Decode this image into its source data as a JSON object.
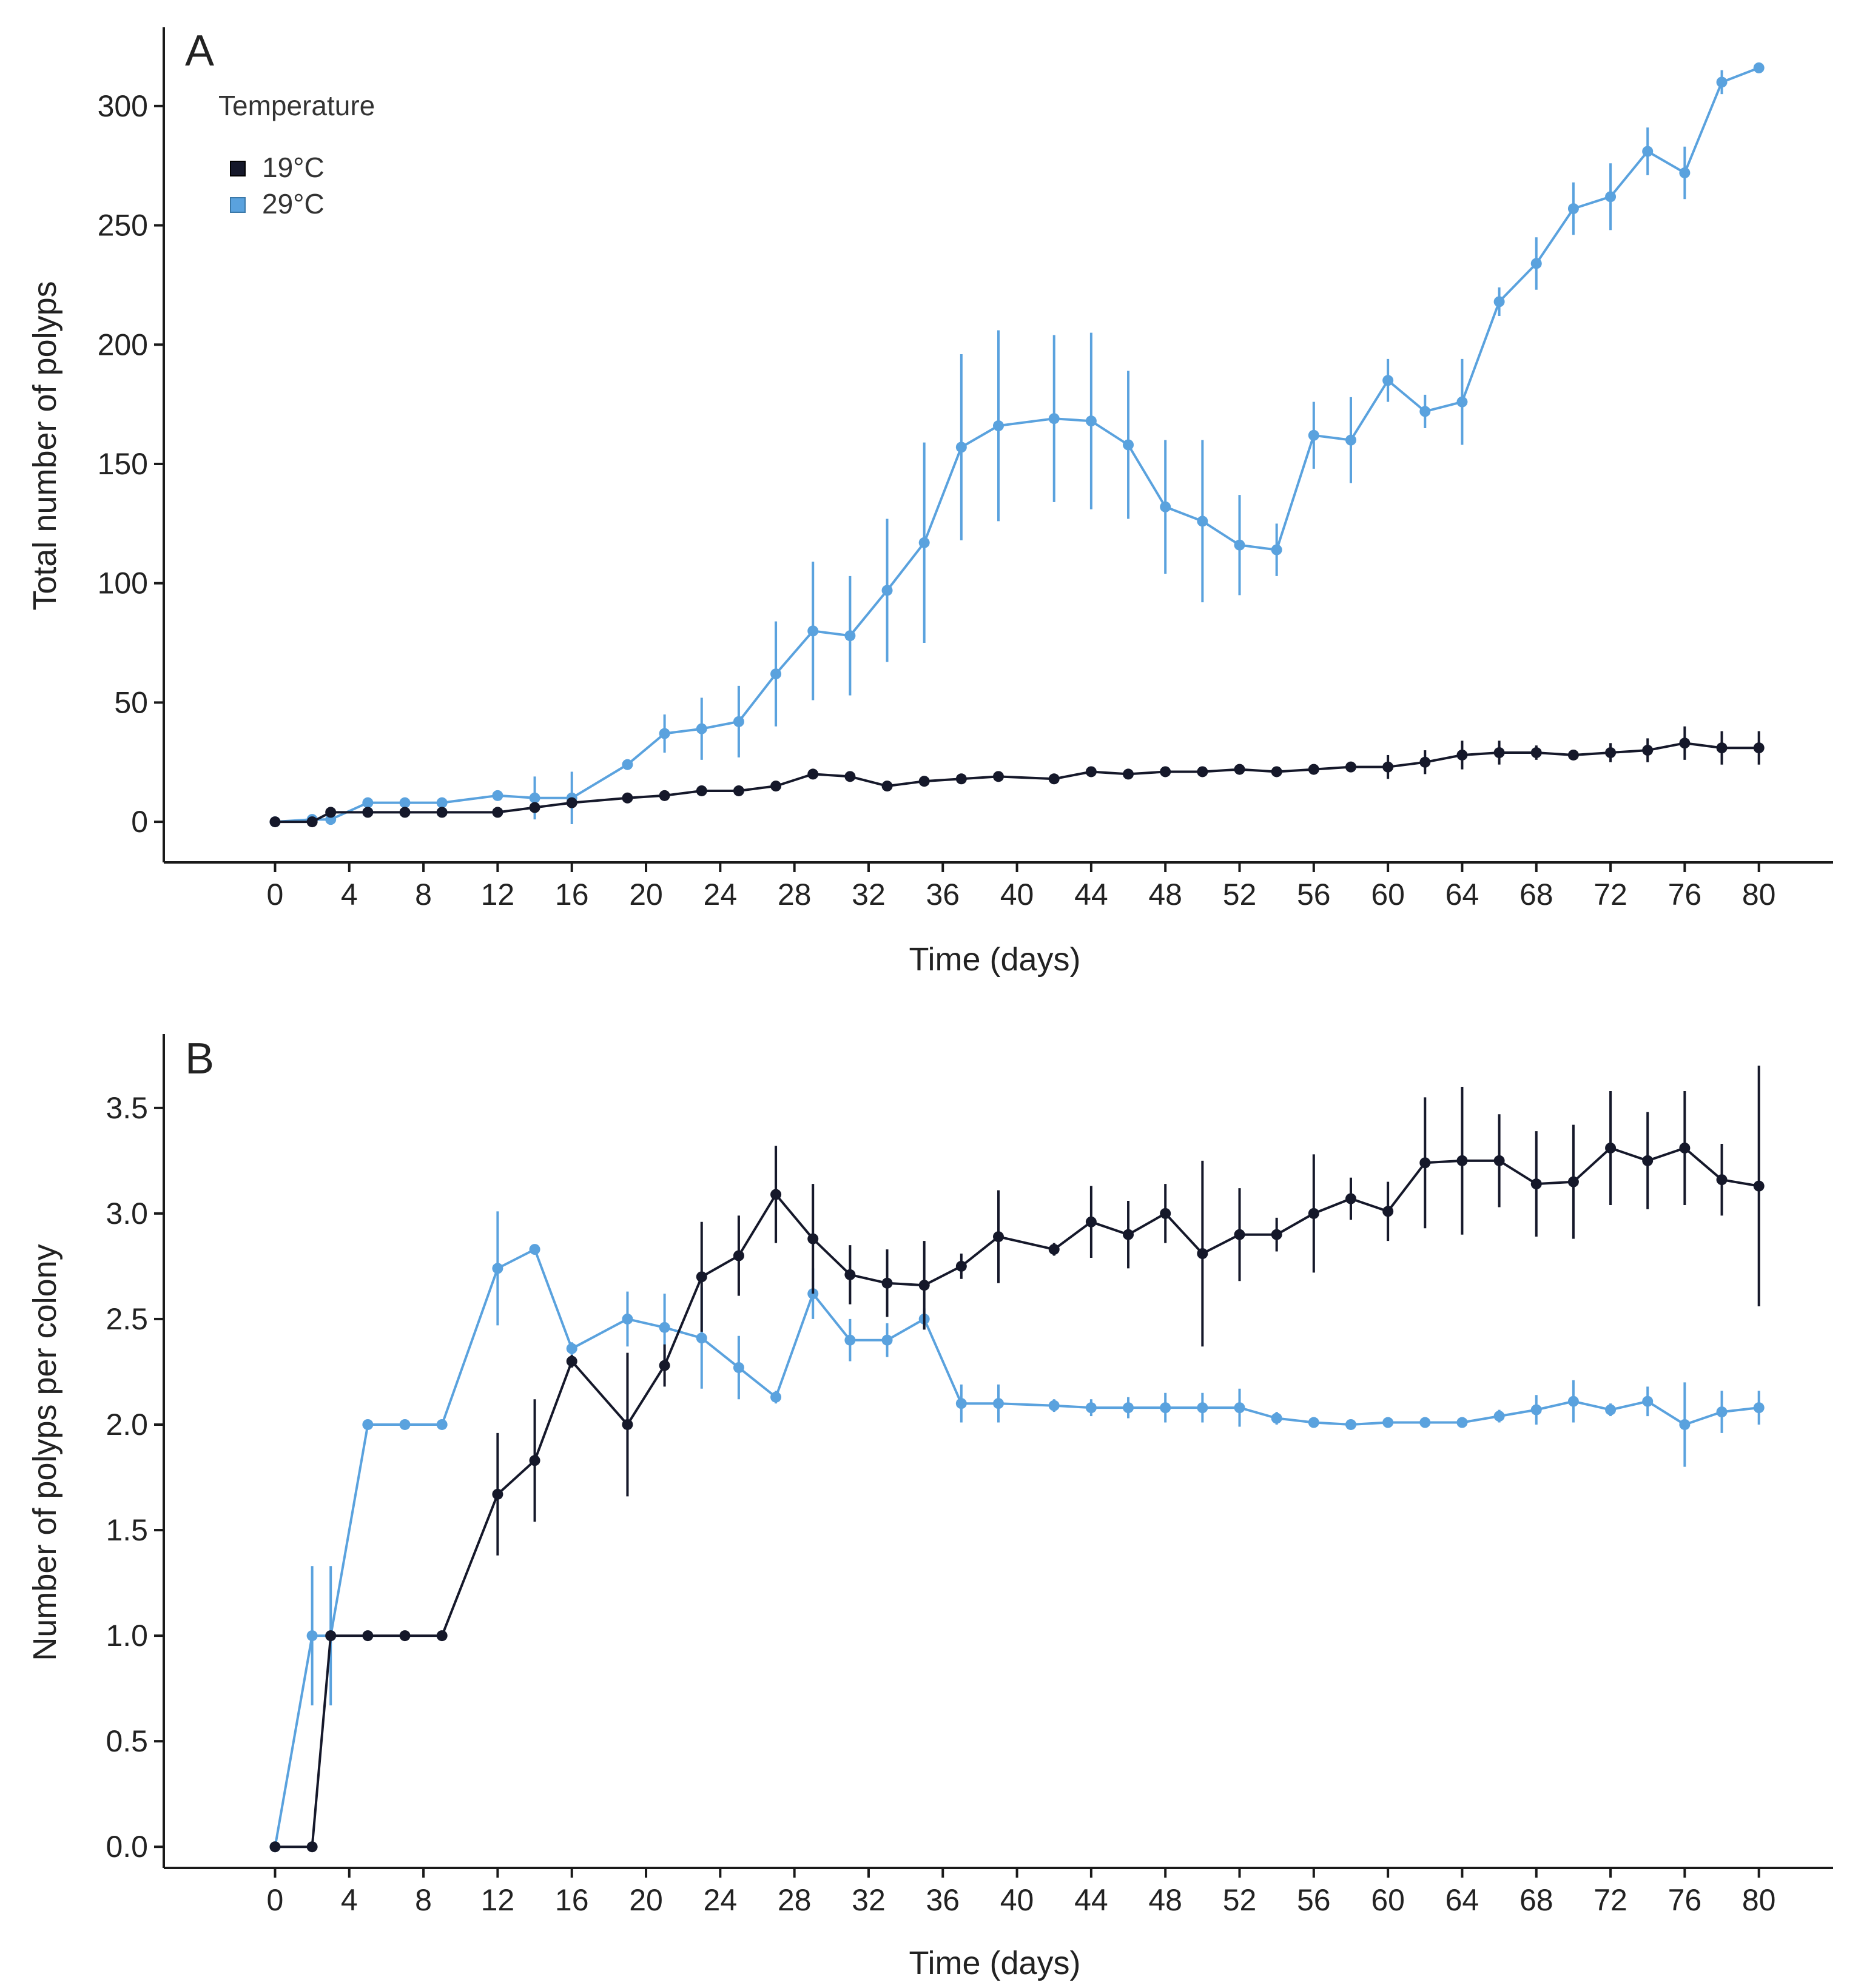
{
  "legend": {
    "title": "Temperature",
    "items": [
      {
        "label": "19°C",
        "color": "#15182a"
      },
      {
        "label": "29°C",
        "color": "#5aa2de"
      }
    ]
  },
  "chart_data": [
    {
      "type": "line",
      "panel_label": "A",
      "title": "",
      "xlabel": "Time (days)",
      "ylabel": "Total number of polyps",
      "xlim": [
        -6,
        84
      ],
      "ylim": [
        -17,
        333
      ],
      "xticks": [
        0,
        4,
        8,
        12,
        16,
        20,
        24,
        28,
        32,
        36,
        40,
        44,
        48,
        52,
        56,
        60,
        64,
        68,
        72,
        76,
        80
      ],
      "yticks": [
        0,
        50,
        100,
        150,
        200,
        250,
        300
      ],
      "ytick_labels": [
        "0",
        "50",
        "100",
        "150",
        "200",
        "250",
        "300"
      ],
      "grid": false,
      "legend_position": "top-left",
      "series": [
        {
          "name": "19°C",
          "color": "#15182a",
          "x": [
            0,
            2,
            3,
            5,
            7,
            9,
            12,
            14,
            16,
            19,
            21,
            23,
            25,
            27,
            29,
            31,
            33,
            35,
            37,
            39,
            42,
            44,
            46,
            48,
            50,
            52,
            54,
            56,
            58,
            60,
            62,
            64,
            66,
            68,
            70,
            72,
            74,
            76,
            78,
            80
          ],
          "y": [
            0,
            0,
            4,
            4,
            4,
            4,
            4,
            6,
            8,
            10,
            11,
            13,
            13,
            15,
            20,
            19,
            15,
            17,
            18,
            19,
            18,
            21,
            20,
            21,
            21,
            22,
            21,
            22,
            23,
            23,
            25,
            28,
            29,
            29,
            28,
            29,
            30,
            33,
            31,
            31
          ],
          "err": [
            0,
            0,
            1,
            0,
            0,
            0,
            1,
            1,
            1,
            1,
            1,
            1,
            1,
            1,
            1,
            1,
            1,
            1,
            1,
            1,
            1,
            1,
            1,
            1,
            1,
            1,
            1,
            1,
            1,
            5,
            5,
            6,
            5,
            3,
            2,
            4,
            5,
            7,
            7,
            7
          ]
        },
        {
          "name": "29°C",
          "color": "#5aa2de",
          "x": [
            0,
            2,
            3,
            5,
            7,
            9,
            12,
            14,
            16,
            19,
            21,
            23,
            25,
            27,
            29,
            31,
            33,
            35,
            37,
            39,
            42,
            44,
            46,
            48,
            50,
            52,
            54,
            56,
            58,
            60,
            62,
            64,
            66,
            68,
            70,
            72,
            74,
            76,
            78,
            80
          ],
          "y": [
            0,
            1,
            1,
            8,
            8,
            8,
            11,
            10,
            10,
            24,
            37,
            39,
            42,
            62,
            80,
            78,
            97,
            117,
            157,
            166,
            169,
            168,
            158,
            132,
            126,
            116,
            114,
            162,
            160,
            185,
            172,
            176,
            218,
            234,
            257,
            262,
            281,
            272,
            310,
            316
          ],
          "err": [
            0,
            0,
            0,
            0,
            0,
            0,
            0,
            9,
            11,
            1,
            8,
            13,
            15,
            22,
            29,
            25,
            30,
            42,
            39,
            40,
            35,
            37,
            31,
            28,
            34,
            21,
            11,
            14,
            18,
            9,
            7,
            18,
            6,
            11,
            11,
            14,
            10,
            11,
            5,
            2
          ]
        }
      ]
    },
    {
      "type": "line",
      "panel_label": "B",
      "title": "",
      "xlabel": "Time (days)",
      "ylabel": "Number of polyps per colony",
      "xlim": [
        -6,
        84
      ],
      "ylim": [
        -0.1,
        3.85
      ],
      "xticks": [
        0,
        4,
        8,
        12,
        16,
        20,
        24,
        28,
        32,
        36,
        40,
        44,
        48,
        52,
        56,
        60,
        64,
        68,
        72,
        76,
        80
      ],
      "yticks": [
        0,
        0.5,
        1,
        1.5,
        2,
        2.5,
        3,
        3.5
      ],
      "ytick_labels": [
        "0.0",
        "0.5",
        "1.0",
        "1.5",
        "2.0",
        "2.5",
        "3.0",
        "3.5"
      ],
      "grid": false,
      "series": [
        {
          "name": "19°C",
          "color": "#15182a",
          "x": [
            0,
            2,
            3,
            5,
            7,
            9,
            12,
            14,
            16,
            19,
            21,
            23,
            25,
            27,
            29,
            31,
            33,
            35,
            37,
            39,
            42,
            44,
            46,
            48,
            50,
            52,
            54,
            56,
            58,
            60,
            62,
            64,
            66,
            68,
            70,
            72,
            74,
            76,
            78,
            80
          ],
          "y": [
            0,
            0,
            1,
            1,
            1,
            1,
            1.67,
            1.83,
            2.3,
            2.0,
            2.28,
            2.7,
            2.8,
            3.09,
            2.88,
            2.71,
            2.67,
            2.66,
            2.75,
            2.89,
            2.83,
            2.96,
            2.9,
            3.0,
            2.81,
            2.9,
            2.9,
            3.0,
            3.07,
            3.01,
            3.24,
            3.25,
            3.25,
            3.14,
            3.15,
            3.31,
            3.25,
            3.31,
            3.16,
            3.13
          ]
        },
        {
          "name": "29°C",
          "color": "#5aa2de",
          "x": [
            0,
            2,
            3,
            5,
            7,
            9,
            12,
            14,
            16,
            19,
            21,
            23,
            25,
            27,
            29,
            31,
            33,
            35,
            37,
            39,
            42,
            44,
            46,
            48,
            50,
            52,
            54,
            56,
            58,
            60,
            62,
            64,
            66,
            68,
            70,
            72,
            74,
            76,
            78,
            80
          ],
          "y": [
            0,
            1,
            1,
            2,
            2,
            2,
            2.74,
            2.83,
            2.36,
            2.5,
            2.46,
            2.41,
            2.27,
            2.13,
            2.62,
            2.4,
            2.4,
            2.5,
            2.1,
            2.1,
            2.09,
            2.08,
            2.08,
            2.08,
            2.08,
            2.08,
            2.03,
            2.01,
            2.0,
            2.01,
            2.01,
            2.01,
            2.04,
            2.07,
            2.11,
            2.07,
            2.11,
            2.0,
            2.06,
            2.08
          ]
        }
      ]
    }
  ]
}
